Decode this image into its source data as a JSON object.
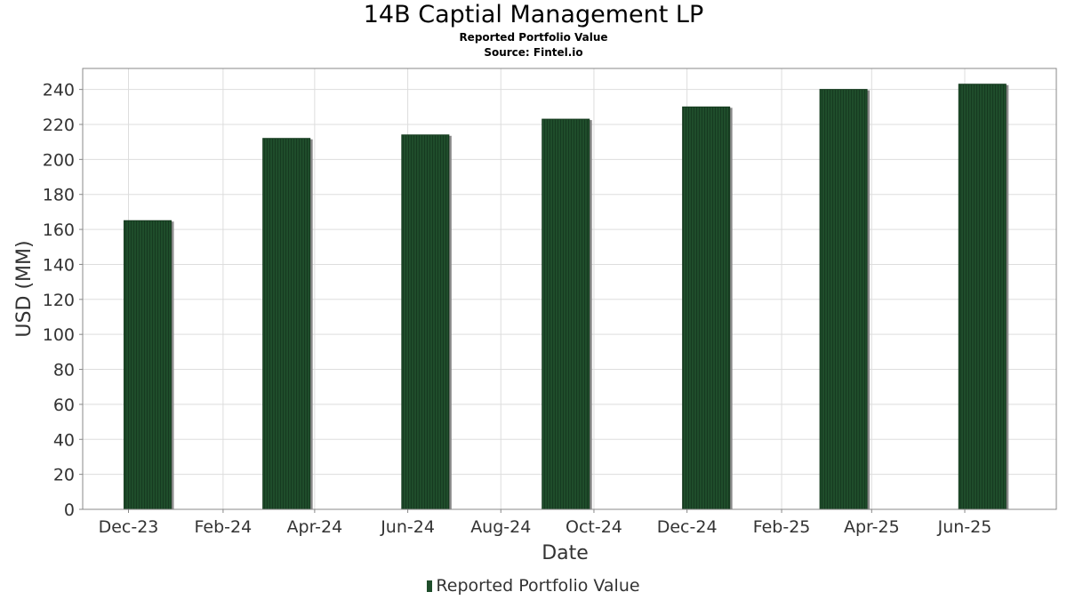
{
  "chart_data": {
    "type": "bar",
    "title": "14B Captial Management LP",
    "subtitle": "Reported Portfolio Value",
    "source": "Source: Fintel.io",
    "xlabel": "Date",
    "ylabel": "USD (MM)",
    "ylim": [
      0,
      252
    ],
    "yticks": [
      0,
      20,
      40,
      60,
      80,
      100,
      120,
      140,
      160,
      180,
      200,
      220,
      240
    ],
    "xlim": [
      "2023-11-01",
      "2025-07-31"
    ],
    "xtick_dates": [
      "2023-12-01",
      "2024-02-01",
      "2024-04-01",
      "2024-06-01",
      "2024-08-01",
      "2024-10-01",
      "2024-12-01",
      "2025-02-01",
      "2025-04-01",
      "2025-06-01"
    ],
    "xtick_labels": [
      "Dec-23",
      "Feb-24",
      "Apr-24",
      "Jun-24",
      "Aug-24",
      "Oct-24",
      "Dec-24",
      "Feb-25",
      "Apr-25",
      "Jun-25"
    ],
    "grid": true,
    "legend": "bottom-center",
    "series": [
      {
        "name": "Reported Portfolio Value",
        "color": "#1f4d2b",
        "dates": [
          "2023-12-31",
          "2024-03-31",
          "2024-06-30",
          "2024-09-30",
          "2024-12-31",
          "2025-03-31",
          "2025-06-30"
        ],
        "values": [
          165,
          212,
          214,
          223,
          230,
          240,
          243
        ]
      }
    ]
  }
}
